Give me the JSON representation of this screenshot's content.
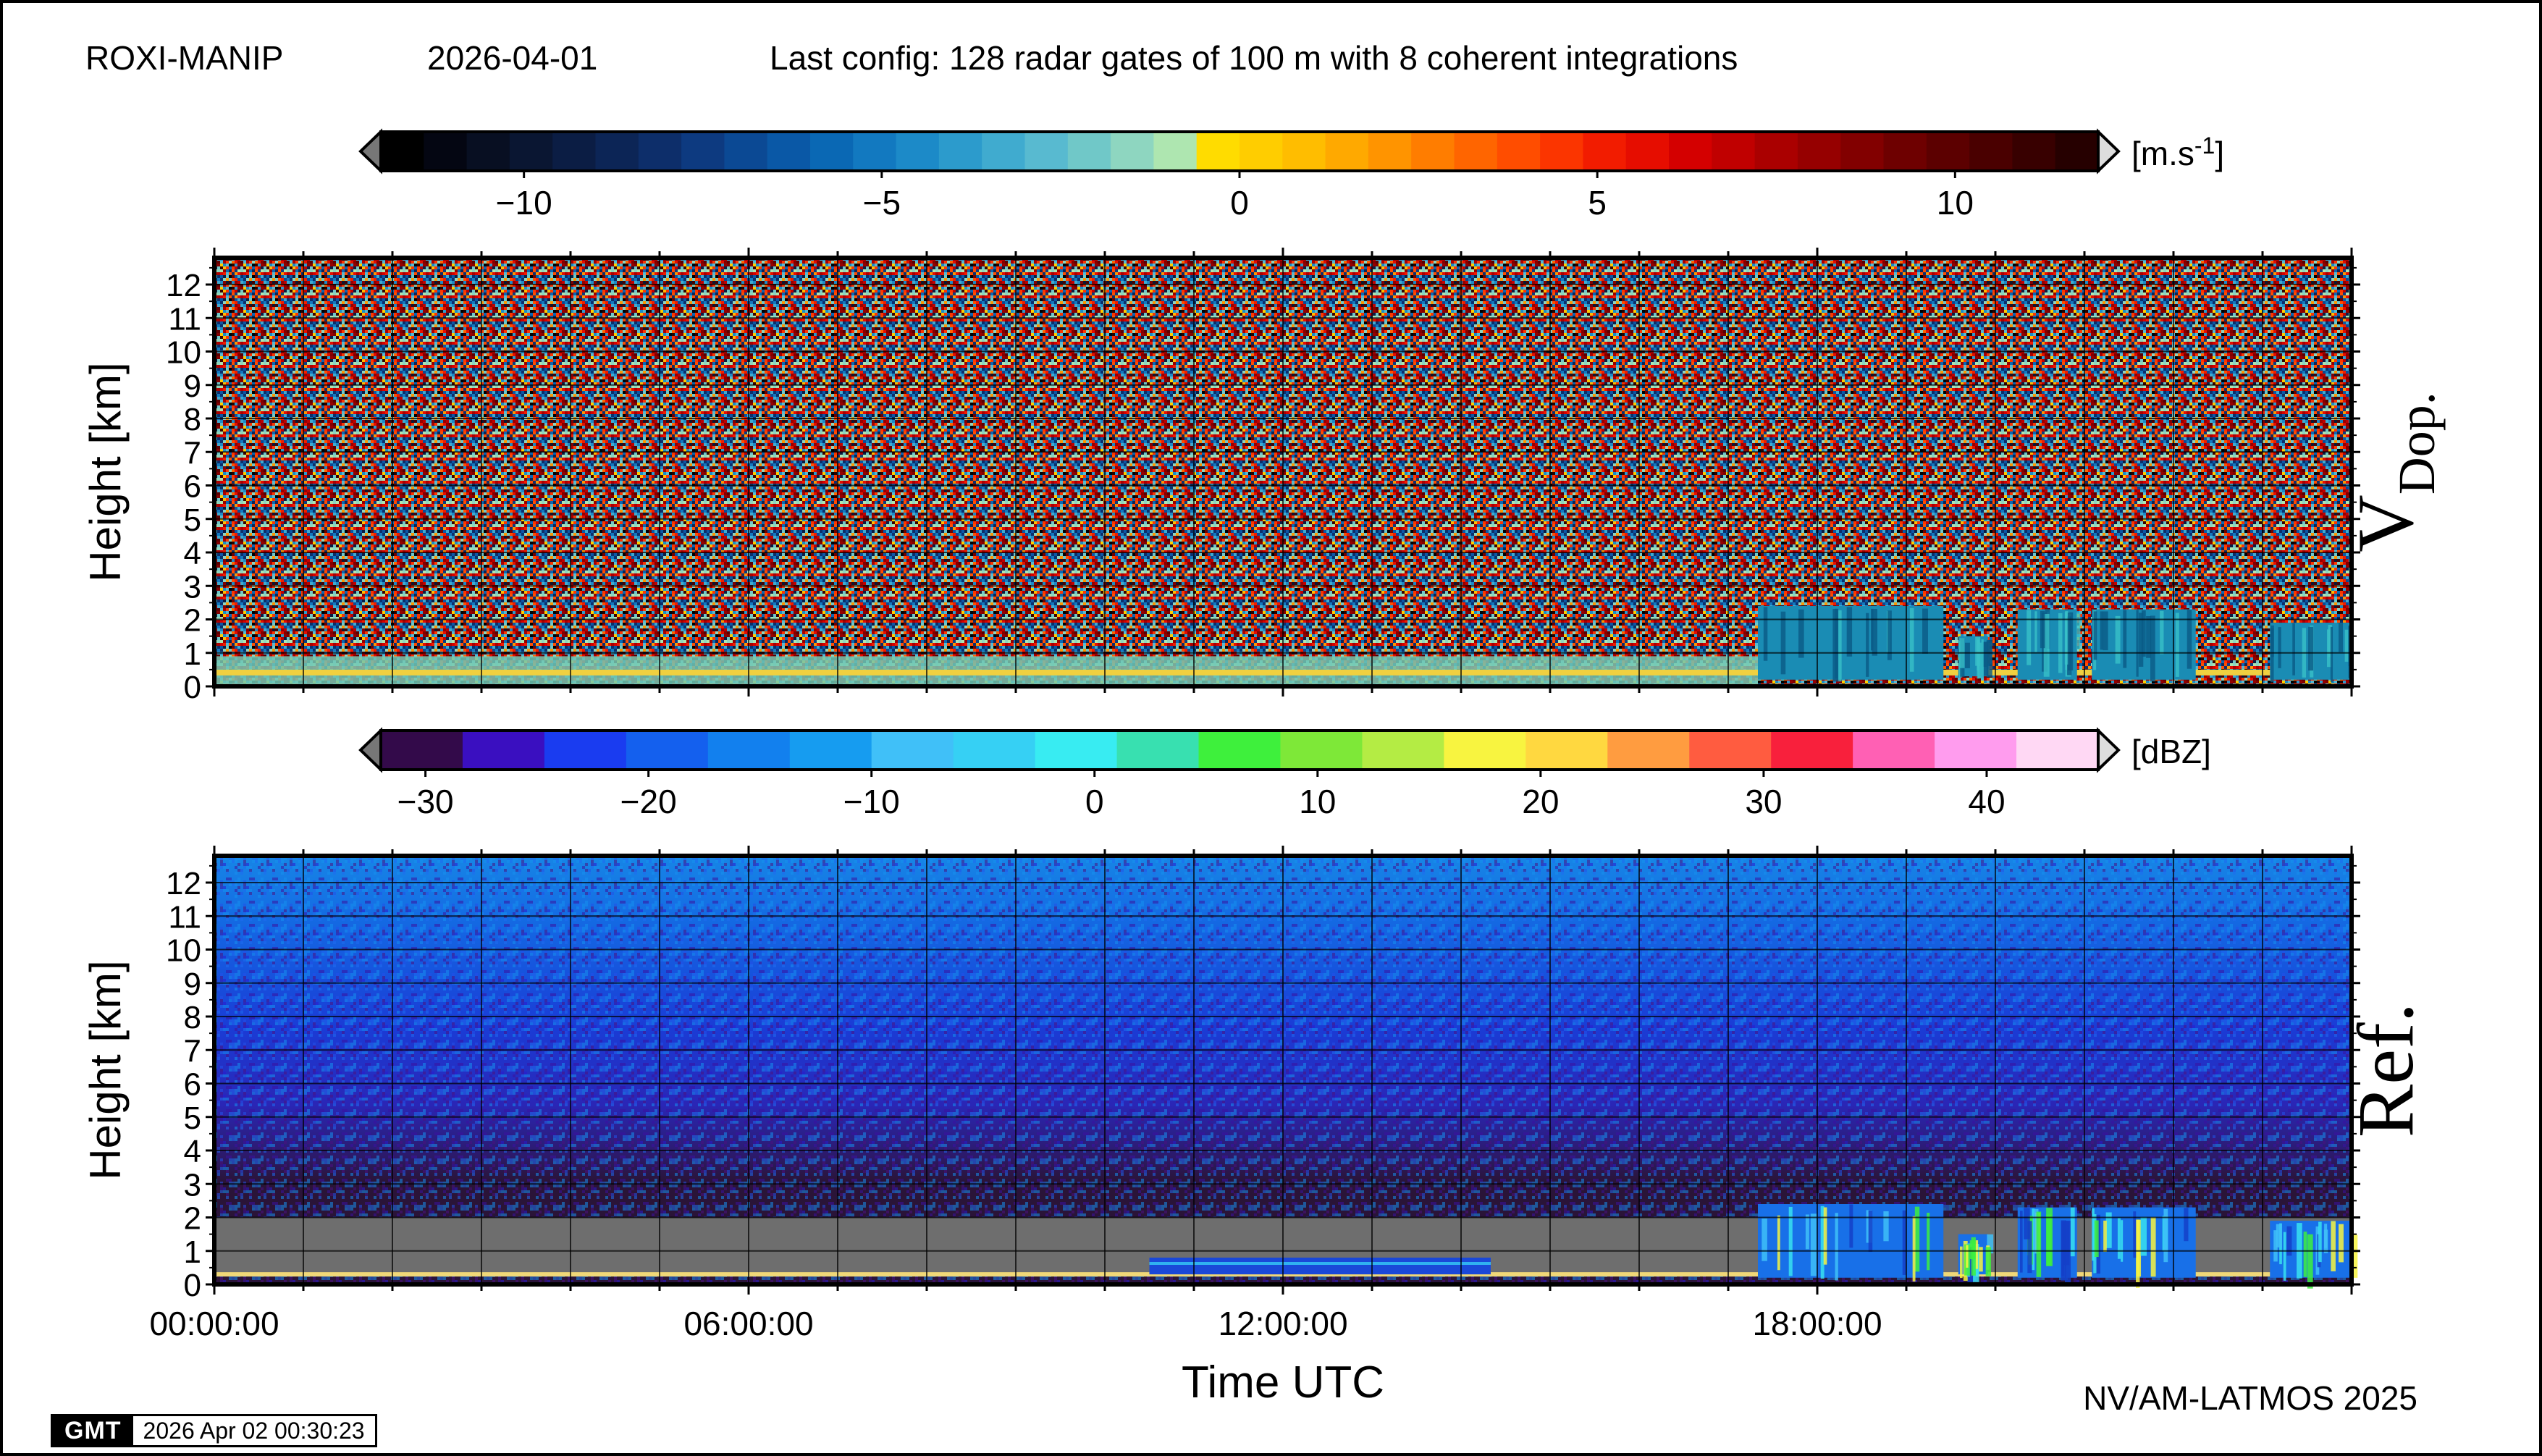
{
  "header": {
    "station": "ROXI-MANIP",
    "date": "2026-04-01",
    "config": "Last config: 128 radar gates of 100 m with 8 coherent integrations"
  },
  "footer": {
    "credit": "NV/AM-LATMOS 2025",
    "gmt_logo": "GMT",
    "timestamp": "2026 Apr 02 00:30:23"
  },
  "chart_data": [
    {
      "type": "heatmap",
      "title": "V Dop.",
      "title_main": "V",
      "title_sub": "Dop.",
      "ylabel": "Height [km]",
      "xlabel": "",
      "ylim": [
        0,
        12.8
      ],
      "xlim": [
        "00:00:00",
        "24:00:00"
      ],
      "yticks": [
        "0",
        "1",
        "2",
        "3",
        "4",
        "5",
        "6",
        "7",
        "8",
        "9",
        "10",
        "11",
        "12"
      ],
      "grid": true,
      "colorbar": {
        "unit": "[m.s",
        "unit_sup": "-1",
        "unit_end": "]",
        "range": [
          -12,
          12
        ],
        "ticks": [
          "−10",
          "−5",
          "0",
          "5",
          "10"
        ],
        "tick_values": [
          -10,
          -5,
          0,
          5,
          10
        ],
        "colors": [
          "#000000",
          "#040612",
          "#080f22",
          "#0a1632",
          "#0b1d44",
          "#0c2556",
          "#0d2e6a",
          "#0d3a80",
          "#0b4994",
          "#0a58a6",
          "#0a68b4",
          "#1279c0",
          "#1c8ac8",
          "#2c9bcc",
          "#40abcf",
          "#58bad0",
          "#70c8c8",
          "#8ed6c0",
          "#aee6b0",
          "#ffdc00",
          "#ffcd00",
          "#ffbd00",
          "#ffa900",
          "#ff9400",
          "#ff7d00",
          "#ff6500",
          "#ff4d00",
          "#fb3500",
          "#f21c00",
          "#e60d00",
          "#d40000",
          "#c00000",
          "#aa0000",
          "#960000",
          "#820000",
          "#6e0000",
          "#5c0000",
          "#4a0000",
          "#380000",
          "#260000"
        ]
      },
      "features": [
        {
          "label": "surface/low layer",
          "t_start": "00:00",
          "t_end": "17:20",
          "h_bottom": 0.0,
          "h_top": 0.9
        },
        {
          "label": "precip echo",
          "t_start": "17:20",
          "t_end": "19:25",
          "h_bottom": 0.2,
          "h_top": 2.4
        },
        {
          "label": "precip echo",
          "t_start": "19:35",
          "t_end": "19:55",
          "h_bottom": 0.3,
          "h_top": 1.5
        },
        {
          "label": "precip echo",
          "t_start": "20:15",
          "t_end": "20:55",
          "h_bottom": 0.2,
          "h_top": 2.3
        },
        {
          "label": "precip echo",
          "t_start": "21:05",
          "t_end": "22:15",
          "h_bottom": 0.2,
          "h_top": 2.3
        },
        {
          "label": "precip echo",
          "t_start": "23:05",
          "t_end": "24:00",
          "h_bottom": 0.2,
          "h_top": 1.9
        }
      ]
    },
    {
      "type": "heatmap",
      "title": "Ref.",
      "ylabel": "Height [km]",
      "xlabel": "Time UTC",
      "ylim": [
        0,
        12.8
      ],
      "xlim": [
        "00:00:00",
        "24:00:00"
      ],
      "yticks": [
        "0",
        "1",
        "2",
        "3",
        "4",
        "5",
        "6",
        "7",
        "8",
        "9",
        "10",
        "11",
        "12"
      ],
      "xticks": [
        "00:00:00",
        "06:00:00",
        "12:00:00",
        "18:00:00"
      ],
      "xtick_hours": [
        0,
        6,
        12,
        18
      ],
      "grid": true,
      "colorbar": {
        "unit": "[dBZ]",
        "range": [
          -32,
          45
        ],
        "ticks": [
          "−30",
          "−20",
          "−10",
          "0",
          "10",
          "20",
          "30",
          "40"
        ],
        "tick_values": [
          -30,
          -20,
          -10,
          0,
          10,
          20,
          30,
          40
        ],
        "colors": [
          "#330a4a",
          "#3a0fc0",
          "#1a3cf0",
          "#1460ee",
          "#1280ee",
          "#169cf0",
          "#40c0f8",
          "#36d0f4",
          "#38ecf2",
          "#38e0b0",
          "#3ef03c",
          "#7ee838",
          "#b4ec44",
          "#f8f440",
          "#ffd840",
          "#ff9c40",
          "#ff5c40",
          "#f8203c",
          "#ff60b4",
          "#ff9cee",
          "#ffd8f4"
        ]
      },
      "features": [
        {
          "label": "no echo (grey)",
          "t_start": "00:00",
          "t_end": "24:00",
          "h_bottom": 0.3,
          "h_top": 2.0
        },
        {
          "label": "weak layer",
          "t_start": "10:30",
          "t_end": "14:20",
          "h_bottom": 0.3,
          "h_top": 0.8
        },
        {
          "label": "precip echo",
          "t_start": "17:20",
          "t_end": "19:25",
          "h_bottom": 0.2,
          "h_top": 2.4
        },
        {
          "label": "precip echo",
          "t_start": "19:35",
          "t_end": "19:55",
          "h_bottom": 0.3,
          "h_top": 1.5
        },
        {
          "label": "precip echo",
          "t_start": "20:15",
          "t_end": "20:55",
          "h_bottom": 0.2,
          "h_top": 2.3
        },
        {
          "label": "precip echo",
          "t_start": "21:05",
          "t_end": "22:15",
          "h_bottom": 0.2,
          "h_top": 2.3
        },
        {
          "label": "precip echo",
          "t_start": "23:05",
          "t_end": "24:00",
          "h_bottom": 0.2,
          "h_top": 1.9
        }
      ]
    }
  ]
}
